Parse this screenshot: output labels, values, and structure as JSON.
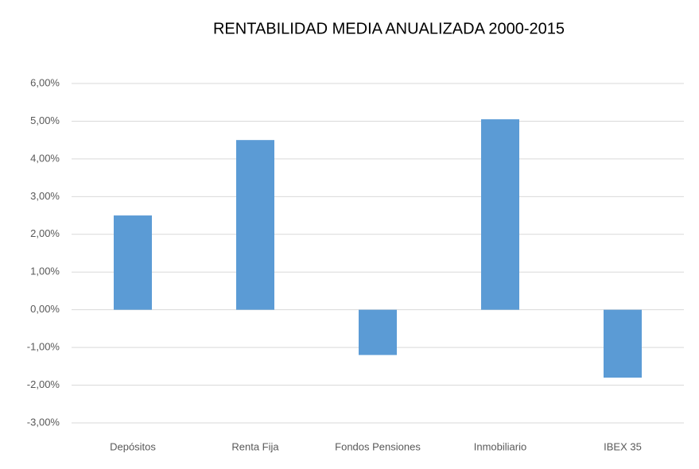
{
  "chart_data": {
    "type": "bar",
    "title": "RENTABILIDAD MEDIA ANUALIZADA 2000-2015",
    "categories": [
      "Depósitos",
      "Renta Fija",
      "Fondos Pensiones",
      "Inmobiliario",
      "IBEX 35"
    ],
    "values": [
      2.5,
      4.5,
      -1.2,
      5.05,
      -1.8
    ],
    "color": "#5b9bd5",
    "ylim": [
      -3,
      6
    ],
    "yticks": [
      {
        "value": -3,
        "label": "-3,00%"
      },
      {
        "value": -2,
        "label": "-2,00%"
      },
      {
        "value": -1,
        "label": "-1,00%"
      },
      {
        "value": 0,
        "label": "0,00%"
      },
      {
        "value": 1,
        "label": "1,00%"
      },
      {
        "value": 2,
        "label": "2,00%"
      },
      {
        "value": 3,
        "label": "3,00%"
      },
      {
        "value": 4,
        "label": "4,00%"
      },
      {
        "value": 5,
        "label": "5,00%"
      },
      {
        "value": 6,
        "label": "6,00%"
      }
    ],
    "grid": true
  }
}
